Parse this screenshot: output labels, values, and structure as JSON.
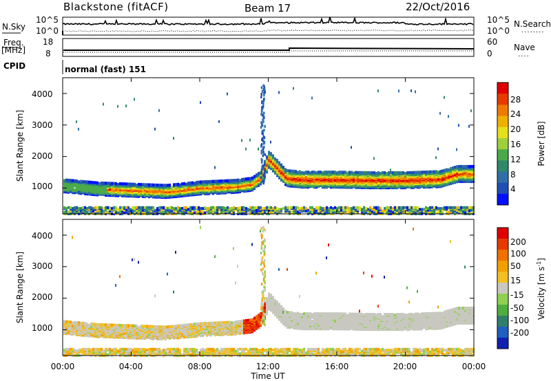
{
  "header": {
    "radar": "Blackstone (fitACF)",
    "beam": "Beam 17",
    "date": "22/Oct/2016"
  },
  "noise_panel": {
    "left_label": "N.Sky",
    "right_label": "N.Search",
    "right_label_marker": "........",
    "left_ticks": [
      "10^5",
      "10^0"
    ],
    "right_ticks": [
      "10^5",
      "10^0"
    ]
  },
  "freq_panel": {
    "left_label_line1": "Freq.",
    "left_label_line2": "[MHz]",
    "right_label": "Nave",
    "right_label_marker": "....",
    "left_ticks": [
      "18",
      "8"
    ],
    "right_ticks": [
      "60",
      "0"
    ]
  },
  "cpid_panel": {
    "label": "CPID",
    "text": "normal (fast) 151"
  },
  "x_axis": {
    "title": "Time UT",
    "ticks": [
      "00:00",
      "04:00",
      "08:00",
      "12:00",
      "16:00",
      "20:00",
      "00:00"
    ]
  },
  "power_panel": {
    "ylabel": "Slant Range [km]",
    "yticks": [
      "4000",
      "3000",
      "2000",
      "1000"
    ],
    "colorbar_title": "Power [dB]",
    "colorbar_ticks": [
      "28",
      "24",
      "20",
      "16",
      "12",
      "8",
      "4"
    ],
    "colors": [
      "#0010ff",
      "#1f4fb5",
      "#2f6fa8",
      "#2f8a6a",
      "#4aaa4a",
      "#9fcf3a",
      "#e6e01a",
      "#f0b000",
      "#f07a00",
      "#e83a00",
      "#e00000"
    ]
  },
  "velocity_panel": {
    "ylabel": "Slant Range [km]",
    "yticks": [
      "4000",
      "3000",
      "2000",
      "1000"
    ],
    "colorbar_title": "Velocity [m s",
    "colorbar_title_sup": "-1",
    "colorbar_title_end": "]",
    "colorbar_ticks": [
      "200",
      "100",
      "50",
      "15",
      "-15",
      "-50",
      "-100",
      "-200"
    ],
    "colors": [
      "#1020b0",
      "#2060c0",
      "#2f7f6a",
      "#4fae3f",
      "#8fd04f",
      "#c8c8c0",
      "#f2c020",
      "#f2a000",
      "#f07000",
      "#e83a00",
      "#e00000"
    ]
  },
  "chart_data": {
    "type": "heatmap",
    "title": "Blackstone (fitACF)",
    "xlabel": "Time UT",
    "ylabel": "Slant Range [km]",
    "xlim": [
      0,
      24
    ],
    "ylim": [
      180,
      4500
    ],
    "series": [
      {
        "name": "Power [dB]",
        "clim": [
          0,
          32
        ]
      },
      {
        "name": "Velocity [m s-1]",
        "clim": [
          -250,
          250
        ]
      }
    ],
    "main_echo_range_km": {
      "hours": [
        0,
        2,
        4,
        6,
        8,
        10,
        11,
        11.5,
        12,
        13,
        14,
        16,
        18,
        20,
        22,
        23
      ],
      "range": [
        1100,
        1000,
        960,
        920,
        1030,
        1080,
        1150,
        1350,
        1950,
        1350,
        1300,
        1300,
        1280,
        1280,
        1320,
        1480
      ]
    },
    "cpid": 151,
    "freq_mhz_level": [
      10.5,
      11.5
    ]
  }
}
